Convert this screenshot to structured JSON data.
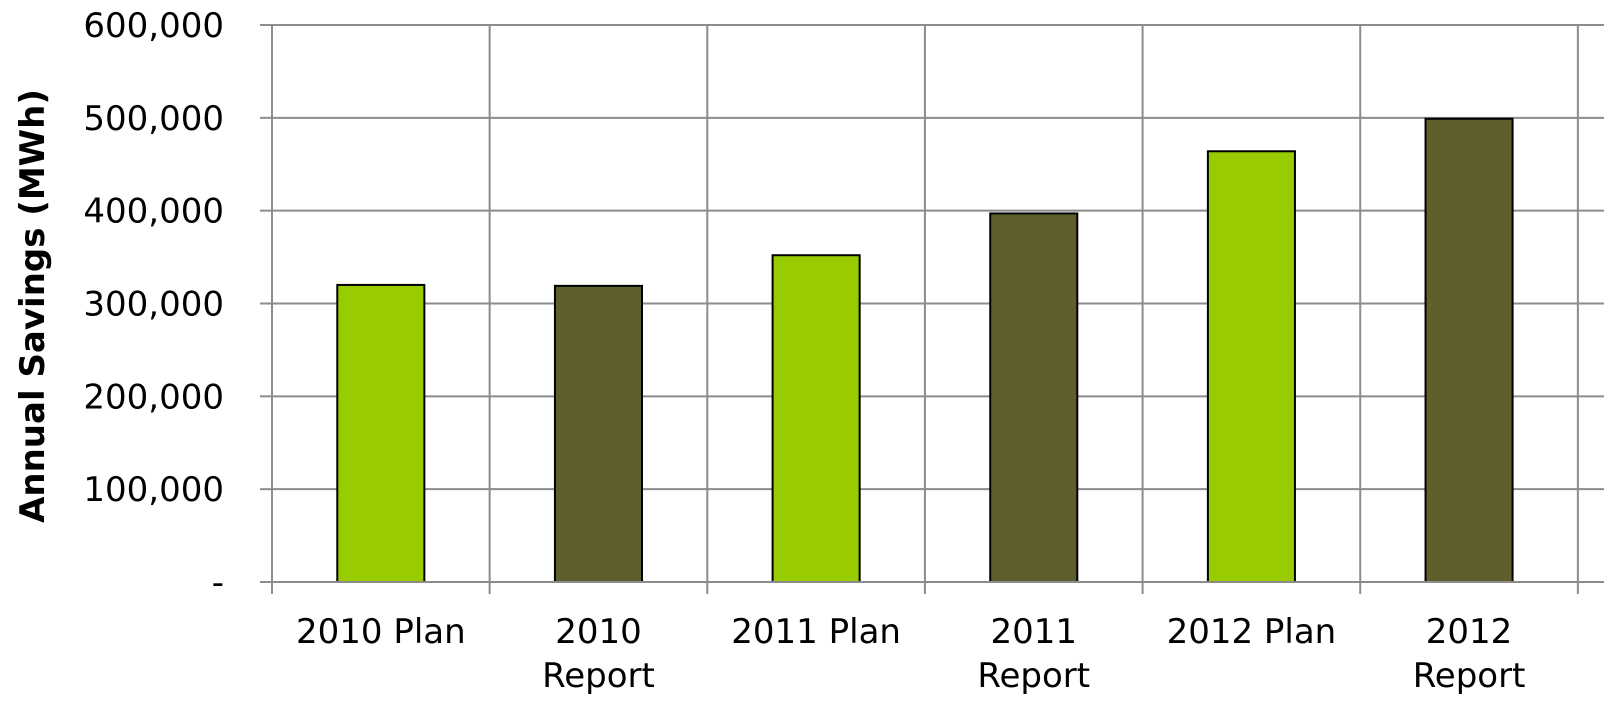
{
  "chart_data": {
    "type": "bar",
    "categories": [
      [
        "2010 Plan"
      ],
      [
        "2010",
        "Report"
      ],
      [
        "2011 Plan"
      ],
      [
        "2011",
        "Report"
      ],
      [
        "2012 Plan"
      ],
      [
        "2012",
        "Report"
      ]
    ],
    "values": [
      320000,
      319000,
      352000,
      397000,
      464000,
      499000
    ],
    "bar_colors": [
      "#99cc00",
      "#5f5f2d",
      "#99cc00",
      "#5f5f2d",
      "#99cc00",
      "#5f5f2d"
    ],
    "bar_stroke": "#000000",
    "grid_color": "#8c8c8c",
    "title": "",
    "xlabel": "",
    "ylabel": "Annual Savings (MWh)",
    "ylim": [
      0,
      600000
    ],
    "yticks": [
      0,
      100000,
      200000,
      300000,
      400000,
      500000,
      600000
    ],
    "ytick_labels": [
      "-",
      "100,000",
      "200,000",
      "300,000",
      "400,000",
      "500,000",
      "600,000"
    ],
    "grid": true,
    "legend": "none"
  }
}
